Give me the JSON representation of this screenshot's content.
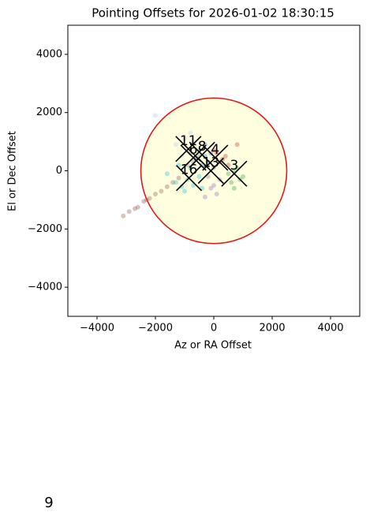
{
  "chart_data": {
    "type": "scatter",
    "title": "Pointing Offsets for 2026-01-02 18:30:15",
    "x_label": "Az or RA Offset",
    "y_label": "El or Dec Offset",
    "xlim": [
      -5000,
      5000
    ],
    "ylim": [
      -5000,
      5000
    ],
    "xticks": [
      {
        "value": -4000,
        "label": "−4000"
      },
      {
        "value": -2000,
        "label": "−2000"
      },
      0,
      2000,
      4000
    ],
    "yticks": [
      {
        "value": -4000,
        "label": "−4000"
      },
      {
        "value": -2000,
        "label": "−2000"
      },
      0,
      2000,
      4000
    ],
    "circle": {
      "x": 0,
      "y": 0,
      "r": 2500,
      "fill": "#ffffe0",
      "edge": "#e31a1c"
    },
    "series": [
      {
        "color": "#8c564b",
        "x": [
          -3100,
          -2900,
          -2700,
          -2600,
          -2400,
          -2300,
          -2200,
          -2000,
          -1800,
          -1600,
          -1400,
          -1200
        ],
        "y": [
          -1550,
          -1400,
          -1300,
          -1250,
          -1050,
          -1000,
          -950,
          -800,
          -700,
          -550,
          -400,
          -250
        ]
      },
      {
        "name": "11",
        "color": "#aec7e8",
        "x": [
          -1300,
          -1000,
          -900,
          -700,
          -1100,
          -800,
          -2000
        ],
        "y": [
          900,
          1100,
          700,
          1000,
          500,
          1300,
          1900
        ],
        "center_x": -870,
        "center_y": 750
      },
      {
        "name": "6",
        "color": "#7f7f7f",
        "x": [
          -800,
          -600,
          -700,
          -500,
          -900
        ],
        "y": [
          600,
          400,
          300,
          500,
          200
        ],
        "center_x": -700,
        "center_y": 450
      },
      {
        "name": "8",
        "color": "#1f77b4",
        "x": [
          -500,
          -300,
          -200,
          -400,
          -100,
          -600,
          -300
        ],
        "y": [
          700,
          500,
          300,
          200,
          600,
          400,
          900
        ],
        "center_x": -400,
        "center_y": 550
      },
      {
        "name": "4",
        "color": "#d62728",
        "x": [
          100,
          300,
          400,
          200,
          500,
          0,
          800
        ],
        "y": [
          600,
          400,
          500,
          300,
          200,
          700,
          900
        ],
        "center_x": 50,
        "center_y": 450
      },
      {
        "name": "16",
        "color": "#17becf",
        "x": [
          -1600,
          -1300,
          -1000,
          -900,
          -700,
          -500,
          -1200,
          -800,
          -400,
          -1100
        ],
        "y": [
          -100,
          -400,
          -700,
          -300,
          -500,
          -200,
          200,
          100,
          -600,
          -550
        ],
        "center_x": -850,
        "center_y": -250
      },
      {
        "name": "13",
        "color": "#9467bd",
        "x": [
          -200,
          0,
          100,
          -100,
          200,
          0,
          -300
        ],
        "y": [
          -200,
          -500,
          -800,
          -600,
          -300,
          100,
          -900
        ],
        "center_x": -100,
        "center_y": 0
      },
      {
        "name": "3",
        "color": "#2ca02c",
        "x": [
          500,
          700,
          900,
          600,
          800,
          1000,
          700
        ],
        "y": [
          -100,
          0,
          -300,
          -400,
          100,
          -200,
          -600
        ],
        "center_x": 700,
        "center_y": -100
      }
    ],
    "footnote": "9"
  }
}
